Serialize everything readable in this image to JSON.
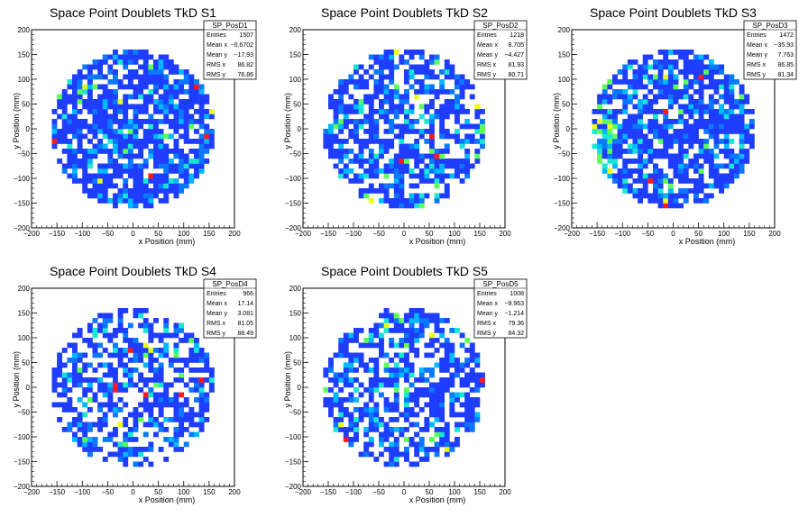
{
  "chart_data": [
    {
      "type": "heatmap",
      "title": "Space Point Doublets TkD S1",
      "xlabel": "x Position (mm)",
      "ylabel": "y Position (mm)",
      "xlim": [
        -200,
        200
      ],
      "ylim": [
        -200,
        200
      ],
      "ticks": [
        "−200",
        "−150",
        "−100",
        "−50",
        "0",
        "50",
        "100",
        "150",
        "200"
      ],
      "grid": false,
      "distribution": {
        "shape": "disk",
        "radius_mm": 160,
        "bin_mm": 10,
        "fill": 0.78,
        "edge": "none"
      },
      "stats": {
        "name": "SP_PosD1",
        "rows": [
          {
            "label": "Entries",
            "value": "1507"
          },
          {
            "label": "Mean x",
            "value": "−0.6702"
          },
          {
            "label": "Mean y",
            "value": "−17.93"
          },
          {
            "label": "RMS x",
            "value": "86.82"
          },
          {
            "label": "RMS y",
            "value": "76.86"
          }
        ]
      }
    },
    {
      "type": "heatmap",
      "title": "Space Point Doublets TkD S2",
      "xlabel": "x Position (mm)",
      "ylabel": "y Position (mm)",
      "xlim": [
        -200,
        200
      ],
      "ylim": [
        -200,
        200
      ],
      "ticks": [
        "−200",
        "−150",
        "−100",
        "−50",
        "0",
        "50",
        "100",
        "150",
        "200"
      ],
      "grid": false,
      "distribution": {
        "shape": "disk",
        "radius_mm": 160,
        "bin_mm": 10,
        "fill": 0.66,
        "edge": "none"
      },
      "stats": {
        "name": "SP_PosD2",
        "rows": [
          {
            "label": "Entries",
            "value": "1218"
          },
          {
            "label": "Mean x",
            "value": "8.705"
          },
          {
            "label": "Mean y",
            "value": "−4.427"
          },
          {
            "label": "RMS x",
            "value": "81.93"
          },
          {
            "label": "RMS y",
            "value": "80.71"
          }
        ]
      }
    },
    {
      "type": "heatmap",
      "title": "Space Point Doublets TkD S3",
      "xlabel": "x Position (mm)",
      "ylabel": "y Position (mm)",
      "xlim": [
        -200,
        200
      ],
      "ylim": [
        -200,
        200
      ],
      "ticks": [
        "−200",
        "−150",
        "−100",
        "−50",
        "0",
        "50",
        "100",
        "150",
        "200"
      ],
      "grid": false,
      "distribution": {
        "shape": "disk",
        "radius_mm": 160,
        "bin_mm": 10,
        "fill": 0.74,
        "edge": "left"
      },
      "stats": {
        "name": "SP_PosD3",
        "rows": [
          {
            "label": "Entries",
            "value": "1472"
          },
          {
            "label": "Mean x",
            "value": "−35.93"
          },
          {
            "label": "Mean y",
            "value": "7.763"
          },
          {
            "label": "RMS x",
            "value": "86.85"
          },
          {
            "label": "RMS y",
            "value": "81.34"
          }
        ]
      }
    },
    {
      "type": "heatmap",
      "title": "Space Point Doublets TkD S4",
      "xlabel": "x Position (mm)",
      "ylabel": "y Position (mm)",
      "xlim": [
        -200,
        200
      ],
      "ylim": [
        -200,
        200
      ],
      "ticks": [
        "−200",
        "−150",
        "−100",
        "−50",
        "0",
        "50",
        "100",
        "150",
        "200"
      ],
      "grid": false,
      "distribution": {
        "shape": "disk",
        "radius_mm": 160,
        "bin_mm": 10,
        "fill": 0.56,
        "edge": "none"
      },
      "stats": {
        "name": "SP_PosD4",
        "rows": [
          {
            "label": "Entries",
            "value": "966"
          },
          {
            "label": "Mean x",
            "value": "17.14"
          },
          {
            "label": "Mean y",
            "value": "3.081"
          },
          {
            "label": "RMS x",
            "value": "81.05"
          },
          {
            "label": "RMS y",
            "value": "88.49"
          }
        ]
      }
    },
    {
      "type": "heatmap",
      "title": "Space Point Doublets TkD S5",
      "xlabel": "x Position (mm)",
      "ylabel": "y Position (mm)",
      "xlim": [
        -200,
        200
      ],
      "ylim": [
        -200,
        200
      ],
      "ticks": [
        "−200",
        "−150",
        "−100",
        "−50",
        "0",
        "50",
        "100",
        "150",
        "200"
      ],
      "grid": false,
      "distribution": {
        "shape": "disk",
        "radius_mm": 160,
        "bin_mm": 10,
        "fill": 0.6,
        "edge": "none"
      },
      "stats": {
        "name": "SP_PosD5",
        "rows": [
          {
            "label": "Entries",
            "value": "1008"
          },
          {
            "label": "Mean x",
            "value": "−9.963"
          },
          {
            "label": "Mean y",
            "value": "−1.214"
          },
          {
            "label": "RMS x",
            "value": "79.36"
          },
          {
            "label": "RMS y",
            "value": "84.32"
          }
        ]
      }
    }
  ],
  "colors": {
    "palette": [
      "#1f3dff",
      "#0a78ff",
      "#00b8ff",
      "#19e6d2",
      "#5cff5a",
      "#e8ff1a",
      "#ff9a00",
      "#ff1a1a"
    ],
    "axis": "#000000",
    "background": "#ffffff"
  }
}
